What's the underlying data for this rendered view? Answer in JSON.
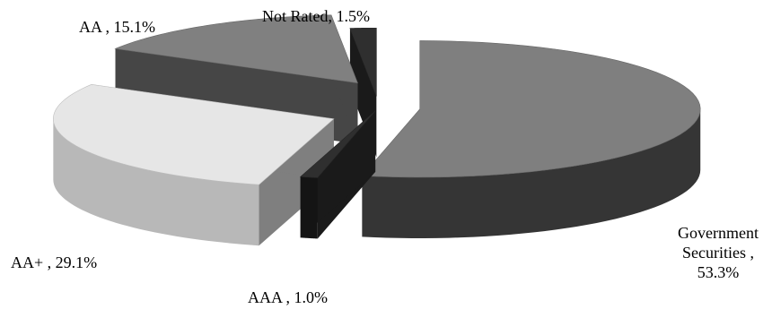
{
  "chart_data": {
    "type": "pie",
    "title": "",
    "slices": [
      {
        "label": "Government Securities",
        "value": 53.3,
        "display": "Government Securities , 53.3%",
        "color": "#7f7f7f"
      },
      {
        "label": "AAA",
        "value": 1.0,
        "display": "AAA , 1.0%",
        "color": "#2f2f2f"
      },
      {
        "label": "AA+",
        "value": 29.1,
        "display": "AA+ , 29.1%",
        "color": "#e6e6e6"
      },
      {
        "label": "AA",
        "value": 15.1,
        "display": "AA , 15.1%",
        "color": "#808080"
      },
      {
        "label": "Not Rated",
        "value": 1.5,
        "display": "Not Rated, 1.5%",
        "color": "#2f2f2f"
      }
    ],
    "legend": "none",
    "style": "3d-exploded"
  },
  "labels": {
    "gov_line1": "Government",
    "gov_line2": "Securities ,",
    "gov_line3": "53.3%",
    "aaa": "AAA , 1.0%",
    "aaplus": "AA+ , 29.1%",
    "aa": "AA , 15.1%",
    "notrated": "Not Rated, 1.5%"
  }
}
